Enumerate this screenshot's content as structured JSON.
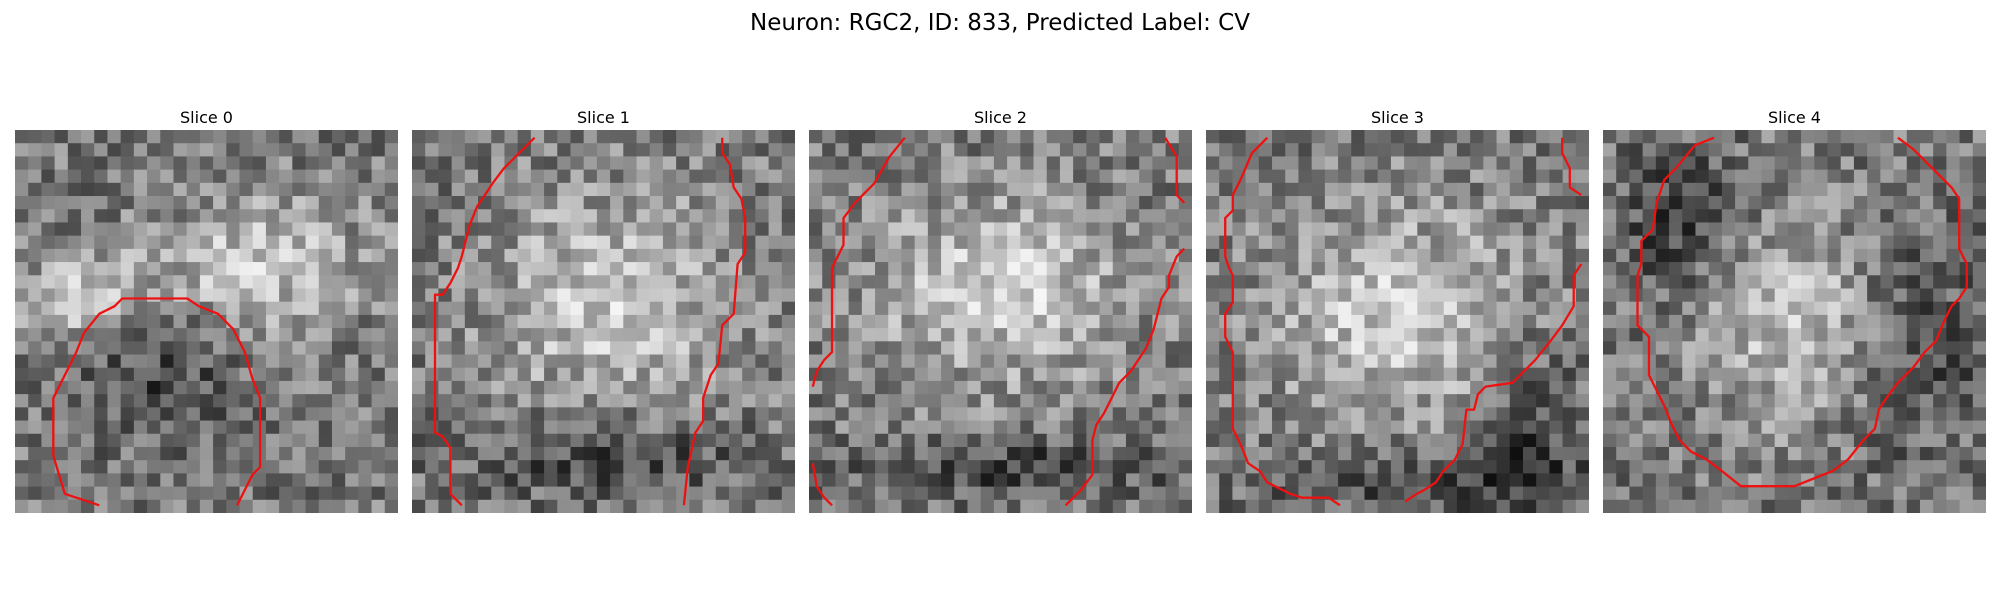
{
  "figure": {
    "title": "Neuron: RGC2, ID: 833, Predicted Label: CV"
  },
  "panels": [
    {
      "title": "Slice 0",
      "seed": 11,
      "bright": [
        [
          0.65,
          0.35,
          0.3,
          0.2
        ],
        [
          0.2,
          0.45,
          0.25,
          0.15
        ]
      ],
      "dark": [
        [
          0.35,
          0.62,
          0.28,
          0.22
        ]
      ],
      "contours": [
        [
          [
            0.22,
            0.98
          ],
          [
            0.13,
            0.95
          ],
          [
            0.1,
            0.85
          ],
          [
            0.1,
            0.7
          ],
          [
            0.13,
            0.64
          ],
          [
            0.16,
            0.58
          ],
          [
            0.18,
            0.53
          ],
          [
            0.22,
            0.48
          ],
          [
            0.26,
            0.46
          ],
          [
            0.28,
            0.44
          ],
          [
            0.45,
            0.44
          ],
          [
            0.48,
            0.46
          ],
          [
            0.53,
            0.48
          ],
          [
            0.57,
            0.52
          ],
          [
            0.6,
            0.58
          ],
          [
            0.62,
            0.65
          ],
          [
            0.64,
            0.7
          ],
          [
            0.64,
            0.88
          ],
          [
            0.62,
            0.9
          ],
          [
            0.6,
            0.94
          ],
          [
            0.58,
            0.98
          ]
        ]
      ]
    },
    {
      "title": "Slice 1",
      "seed": 23,
      "bright": [
        [
          0.52,
          0.45,
          0.38,
          0.33
        ]
      ],
      "dark": [
        [
          0.5,
          0.85,
          0.45,
          0.12
        ]
      ],
      "contours": [
        [
          [
            0.32,
            0.02
          ],
          [
            0.24,
            0.1
          ],
          [
            0.21,
            0.14
          ],
          [
            0.19,
            0.17
          ],
          [
            0.17,
            0.2
          ],
          [
            0.15,
            0.25
          ],
          [
            0.13,
            0.33
          ],
          [
            0.12,
            0.36
          ],
          [
            0.1,
            0.4
          ],
          [
            0.08,
            0.43
          ],
          [
            0.06,
            0.43
          ],
          [
            0.06,
            0.79
          ],
          [
            0.08,
            0.8
          ],
          [
            0.1,
            0.83
          ],
          [
            0.1,
            0.95
          ],
          [
            0.13,
            0.98
          ]
        ],
        [
          [
            0.81,
            0.02
          ],
          [
            0.81,
            0.06
          ],
          [
            0.83,
            0.09
          ],
          [
            0.84,
            0.15
          ],
          [
            0.86,
            0.18
          ],
          [
            0.87,
            0.23
          ],
          [
            0.87,
            0.32
          ],
          [
            0.85,
            0.35
          ],
          [
            0.84,
            0.48
          ],
          [
            0.81,
            0.51
          ],
          [
            0.8,
            0.61
          ],
          [
            0.78,
            0.64
          ],
          [
            0.76,
            0.7
          ],
          [
            0.76,
            0.76
          ],
          [
            0.74,
            0.79
          ],
          [
            0.72,
            0.88
          ],
          [
            0.71,
            0.98
          ]
        ]
      ]
    },
    {
      "title": "Slice 2",
      "seed": 37,
      "bright": [
        [
          0.5,
          0.42,
          0.42,
          0.3
        ]
      ],
      "dark": [
        [
          0.55,
          0.88,
          0.5,
          0.1
        ]
      ],
      "contours": [
        [
          [
            0.25,
            0.02
          ],
          [
            0.21,
            0.07
          ],
          [
            0.17,
            0.14
          ],
          [
            0.14,
            0.17
          ],
          [
            0.12,
            0.19
          ],
          [
            0.09,
            0.23
          ],
          [
            0.09,
            0.3
          ],
          [
            0.07,
            0.34
          ],
          [
            0.06,
            0.36
          ],
          [
            0.06,
            0.58
          ],
          [
            0.04,
            0.6
          ],
          [
            0.02,
            0.63
          ],
          [
            0.01,
            0.67
          ]
        ],
        [
          [
            0.01,
            0.87
          ],
          [
            0.02,
            0.93
          ],
          [
            0.04,
            0.96
          ],
          [
            0.06,
            0.98
          ]
        ],
        [
          [
            0.93,
            0.02
          ],
          [
            0.96,
            0.07
          ],
          [
            0.96,
            0.17
          ],
          [
            0.98,
            0.19
          ]
        ],
        [
          [
            0.98,
            0.31
          ],
          [
            0.96,
            0.33
          ],
          [
            0.94,
            0.38
          ],
          [
            0.94,
            0.41
          ],
          [
            0.92,
            0.44
          ],
          [
            0.9,
            0.52
          ],
          [
            0.88,
            0.57
          ],
          [
            0.86,
            0.6
          ],
          [
            0.84,
            0.63
          ],
          [
            0.81,
            0.66
          ],
          [
            0.79,
            0.7
          ],
          [
            0.77,
            0.74
          ],
          [
            0.75,
            0.77
          ],
          [
            0.74,
            0.81
          ],
          [
            0.74,
            0.9
          ],
          [
            0.71,
            0.94
          ],
          [
            0.67,
            0.98
          ]
        ]
      ]
    },
    {
      "title": "Slice 3",
      "seed": 53,
      "bright": [
        [
          0.5,
          0.48,
          0.4,
          0.33
        ]
      ],
      "dark": [
        [
          0.6,
          0.92,
          0.6,
          0.1
        ],
        [
          0.85,
          0.75,
          0.15,
          0.25
        ]
      ],
      "contours": [
        [
          [
            0.16,
            0.02
          ],
          [
            0.12,
            0.06
          ],
          [
            0.09,
            0.13
          ],
          [
            0.07,
            0.17
          ],
          [
            0.07,
            0.21
          ],
          [
            0.05,
            0.23
          ],
          [
            0.05,
            0.33
          ],
          [
            0.06,
            0.36
          ],
          [
            0.07,
            0.38
          ],
          [
            0.07,
            0.45
          ],
          [
            0.05,
            0.48
          ],
          [
            0.05,
            0.54
          ],
          [
            0.07,
            0.58
          ],
          [
            0.07,
            0.78
          ],
          [
            0.09,
            0.82
          ],
          [
            0.11,
            0.87
          ],
          [
            0.14,
            0.89
          ],
          [
            0.16,
            0.92
          ],
          [
            0.18,
            0.93
          ],
          [
            0.22,
            0.95
          ],
          [
            0.25,
            0.96
          ],
          [
            0.32,
            0.96
          ],
          [
            0.35,
            0.98
          ]
        ],
        [
          [
            0.93,
            0.02
          ],
          [
            0.93,
            0.06
          ],
          [
            0.95,
            0.1
          ],
          [
            0.95,
            0.15
          ],
          [
            0.98,
            0.17
          ]
        ],
        [
          [
            0.98,
            0.35
          ],
          [
            0.96,
            0.38
          ],
          [
            0.96,
            0.46
          ],
          [
            0.93,
            0.51
          ],
          [
            0.9,
            0.55
          ],
          [
            0.86,
            0.6
          ],
          [
            0.83,
            0.63
          ],
          [
            0.8,
            0.66
          ],
          [
            0.73,
            0.67
          ],
          [
            0.71,
            0.69
          ],
          [
            0.7,
            0.73
          ],
          [
            0.68,
            0.73
          ],
          [
            0.67,
            0.82
          ],
          [
            0.65,
            0.86
          ],
          [
            0.62,
            0.89
          ],
          [
            0.6,
            0.92
          ],
          [
            0.57,
            0.94
          ],
          [
            0.55,
            0.95
          ],
          [
            0.52,
            0.97
          ]
        ]
      ]
    },
    {
      "title": "Slice 4",
      "seed": 71,
      "bright": [
        [
          0.52,
          0.5,
          0.3,
          0.3
        ]
      ],
      "dark": [
        [
          0.8,
          0.55,
          0.25,
          0.35
        ],
        [
          0.2,
          0.25,
          0.2,
          0.25
        ]
      ],
      "contours": [
        [
          [
            0.29,
            0.02
          ],
          [
            0.24,
            0.04
          ],
          [
            0.19,
            0.1
          ],
          [
            0.16,
            0.13
          ],
          [
            0.14,
            0.19
          ],
          [
            0.13,
            0.26
          ],
          [
            0.1,
            0.29
          ],
          [
            0.1,
            0.35
          ],
          [
            0.09,
            0.38
          ],
          [
            0.09,
            0.51
          ],
          [
            0.12,
            0.54
          ],
          [
            0.12,
            0.64
          ],
          [
            0.14,
            0.68
          ],
          [
            0.16,
            0.72
          ],
          [
            0.18,
            0.77
          ],
          [
            0.2,
            0.81
          ],
          [
            0.23,
            0.84
          ],
          [
            0.27,
            0.86
          ],
          [
            0.31,
            0.89
          ],
          [
            0.36,
            0.93
          ],
          [
            0.5,
            0.93
          ],
          [
            0.55,
            0.91
          ],
          [
            0.6,
            0.89
          ],
          [
            0.64,
            0.86
          ],
          [
            0.68,
            0.81
          ],
          [
            0.71,
            0.78
          ],
          [
            0.72,
            0.73
          ],
          [
            0.74,
            0.7
          ],
          [
            0.77,
            0.66
          ],
          [
            0.81,
            0.62
          ],
          [
            0.84,
            0.58
          ],
          [
            0.87,
            0.55
          ],
          [
            0.89,
            0.5
          ],
          [
            0.91,
            0.46
          ],
          [
            0.93,
            0.44
          ],
          [
            0.95,
            0.41
          ],
          [
            0.95,
            0.35
          ],
          [
            0.93,
            0.31
          ],
          [
            0.93,
            0.18
          ],
          [
            0.91,
            0.15
          ],
          [
            0.88,
            0.12
          ],
          [
            0.84,
            0.08
          ],
          [
            0.81,
            0.05
          ],
          [
            0.77,
            0.02
          ]
        ]
      ]
    }
  ]
}
